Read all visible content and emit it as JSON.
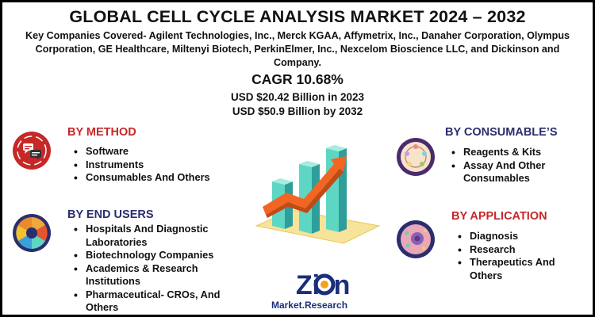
{
  "header": {
    "title": "GLOBAL CELL CYCLE ANALYSIS MARKET 2024 – 2032",
    "companies": "Key Companies Covered- Agilent Technologies, Inc., Merck KGAA, Affymetrix, Inc., Danaher Corporation, Olympus Corporation, GE Healthcare, Miltenyi Biotech, PerkinElmer, Inc., Nexcelom Bioscience LLC, and Dickinson and Company.",
    "cagr": "CAGR 10.68%",
    "value_2023": "USD $20.42 Billion in 2023",
    "value_2032": "USD $50.9 Billion  by 2032"
  },
  "segments": {
    "method": {
      "title": "BY METHOD",
      "items": [
        "Software",
        "Instruments",
        "Consumables And Others"
      ],
      "icon": "chat-bubbles-icon"
    },
    "end_users": {
      "title": "BY END USERS",
      "items": [
        "Hospitals And Diagnostic Laboratories",
        "Biotechnology Companies",
        "Academics & Research Institutions",
        "Pharmaceutical- CROs, And Others"
      ],
      "icon": "dial-puzzle-icon"
    },
    "consumables": {
      "title": "BY CONSUMABLE’S",
      "items": [
        "Reagents & Kits",
        "Assay And Other Consumables"
      ],
      "icon": "cell-cycle-icon"
    },
    "application": {
      "title": "BY APPLICATION",
      "items": [
        "Diagnosis",
        "Research",
        "Therapeutics And Others"
      ],
      "icon": "cell-icon"
    }
  },
  "logo": {
    "name": "Zion",
    "subtitle": "Market.Research"
  },
  "colors": {
    "accent_red": "#c62828",
    "navy": "#2b2e6e",
    "teal_bar": "#5ed6c4",
    "orange_arrow": "#f26522"
  }
}
